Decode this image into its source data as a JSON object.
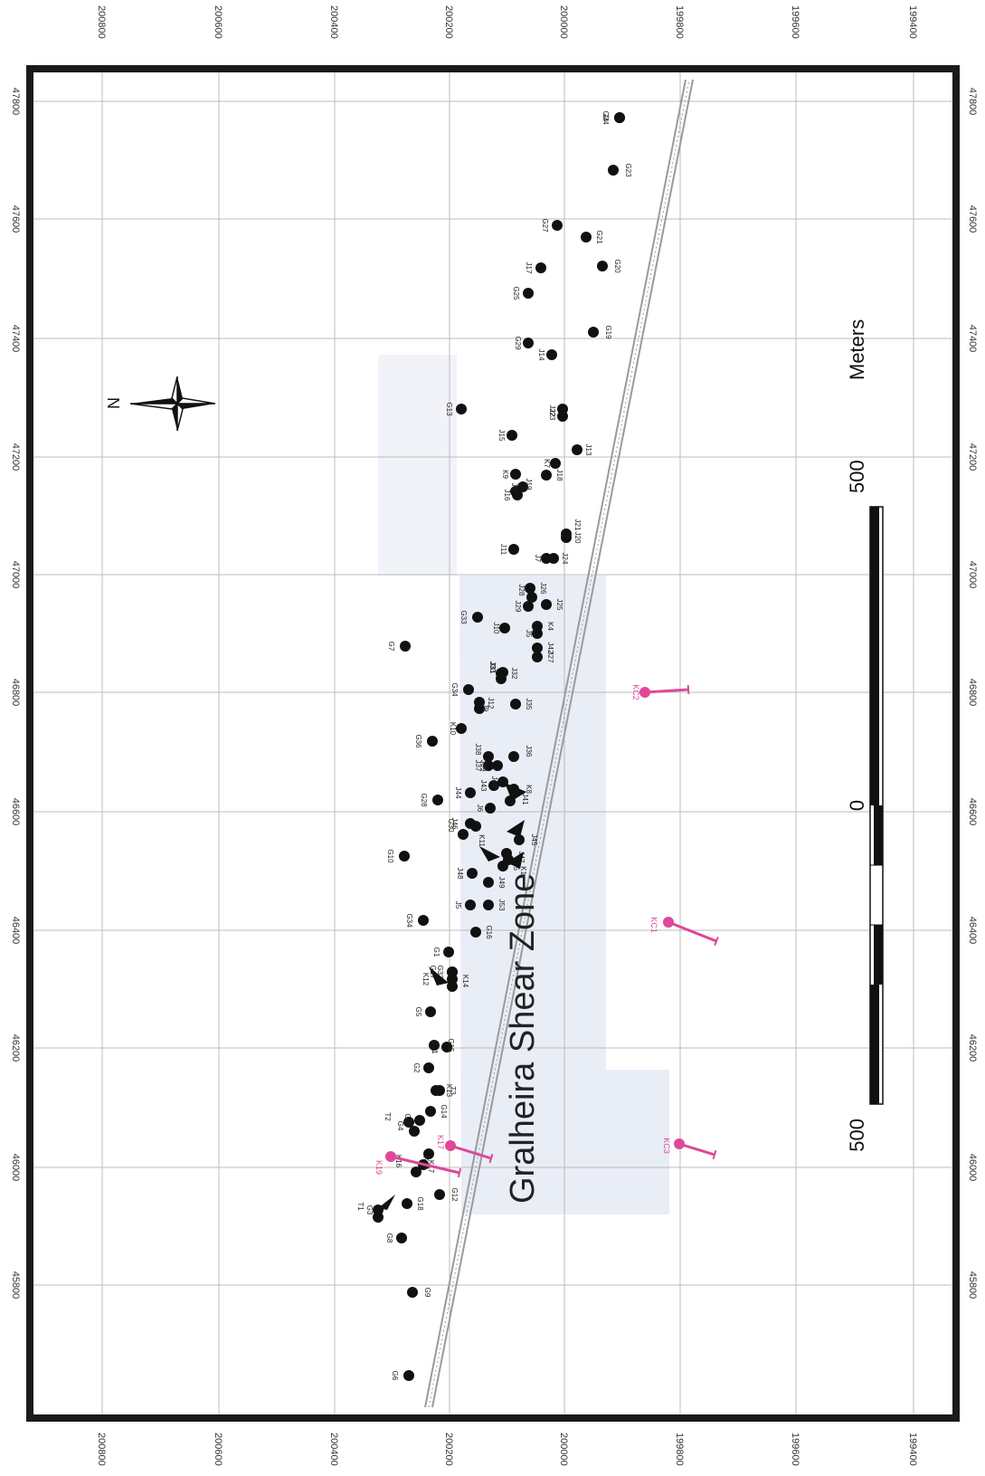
{
  "map": {
    "feature_label": "Gralheira Shear Zone",
    "north_label": "N",
    "scale_bar": {
      "left_value": "500",
      "center_value": "0",
      "right_value": "500",
      "unit": "Meters"
    },
    "grid": {
      "easting_ticks": [
        "45800",
        "46000",
        "46200",
        "46400",
        "46600",
        "46800",
        "47000",
        "47200",
        "47400",
        "47600",
        "47800"
      ],
      "northing_ticks": [
        "200800",
        "200600",
        "200400",
        "200200",
        "200000",
        "199800",
        "199600",
        "199400"
      ]
    },
    "colors": {
      "points": "#111111",
      "pink_boreholes": "#e0469a",
      "frame": "#1a1a1a",
      "grid": "#bcbcbc",
      "shear_zone": "#9a9a9a",
      "shaded_area": "#e9edf6"
    },
    "points": [
      {
        "label": "G6"
      },
      {
        "label": "G9"
      },
      {
        "label": "G8"
      },
      {
        "label": "G18"
      },
      {
        "label": "G12"
      },
      {
        "label": "T1"
      },
      {
        "label": "G3"
      },
      {
        "label": "K16"
      },
      {
        "label": "G4"
      },
      {
        "label": "T2"
      },
      {
        "label": "K18"
      },
      {
        "label": "K17"
      },
      {
        "label": "G35"
      },
      {
        "label": "G14"
      },
      {
        "label": "K13"
      },
      {
        "label": "G2"
      },
      {
        "label": "T3"
      },
      {
        "label": "G31"
      },
      {
        "label": "G15"
      },
      {
        "label": "G5"
      },
      {
        "label": "K14"
      },
      {
        "label": "K12"
      },
      {
        "label": "G17"
      },
      {
        "label": "G32"
      },
      {
        "label": "G1"
      },
      {
        "label": "G34"
      },
      {
        "label": "G16"
      },
      {
        "label": "J53"
      },
      {
        "label": "J5"
      },
      {
        "label": "J48"
      },
      {
        "label": "J49"
      },
      {
        "label": "G10"
      },
      {
        "label": "K5"
      },
      {
        "label": "J47"
      },
      {
        "label": "K1"
      },
      {
        "label": "J46"
      },
      {
        "label": "J45"
      },
      {
        "label": "K11"
      },
      {
        "label": "G30"
      },
      {
        "label": "G28"
      },
      {
        "label": "J41"
      },
      {
        "label": "J6"
      },
      {
        "label": "J44"
      },
      {
        "label": "J43"
      },
      {
        "label": "J40"
      },
      {
        "label": "K8"
      },
      {
        "label": "J39"
      },
      {
        "label": "J37"
      },
      {
        "label": "J36"
      },
      {
        "label": "J38"
      },
      {
        "label": "G36"
      },
      {
        "label": "K10"
      },
      {
        "label": "J12"
      },
      {
        "label": "J9"
      },
      {
        "label": "G34"
      },
      {
        "label": "J35"
      },
      {
        "label": "J32"
      },
      {
        "label": "J31"
      },
      {
        "label": "J33"
      },
      {
        "label": "G7"
      },
      {
        "label": "J27"
      },
      {
        "label": "J42"
      },
      {
        "label": "J5"
      },
      {
        "label": "K4"
      },
      {
        "label": "J10"
      },
      {
        "label": "G33"
      },
      {
        "label": "J29"
      },
      {
        "label": "J28"
      },
      {
        "label": "J26"
      },
      {
        "label": "J25"
      },
      {
        "label": "J24"
      },
      {
        "label": "J7"
      },
      {
        "label": "J11"
      },
      {
        "label": "J20"
      },
      {
        "label": "J21"
      },
      {
        "label": "J16"
      },
      {
        "label": "J19"
      },
      {
        "label": "J8"
      },
      {
        "label": "J18"
      },
      {
        "label": "K9"
      },
      {
        "label": "K7"
      },
      {
        "label": "J13"
      },
      {
        "label": "J15"
      },
      {
        "label": "J22"
      },
      {
        "label": "J23"
      },
      {
        "label": "G13"
      },
      {
        "label": "J14"
      },
      {
        "label": "G29"
      },
      {
        "label": "G19"
      },
      {
        "label": "G25"
      },
      {
        "label": "J17"
      },
      {
        "label": "G20"
      },
      {
        "label": "G21"
      },
      {
        "label": "G27"
      },
      {
        "label": "G23"
      },
      {
        "label": "G24"
      },
      {
        "label": "J4"
      }
    ],
    "pink_boreholes": [
      {
        "label": "K19"
      },
      {
        "label": "K17"
      },
      {
        "label": "KC3"
      },
      {
        "label": "KC1"
      },
      {
        "label": "KC2"
      }
    ]
  }
}
